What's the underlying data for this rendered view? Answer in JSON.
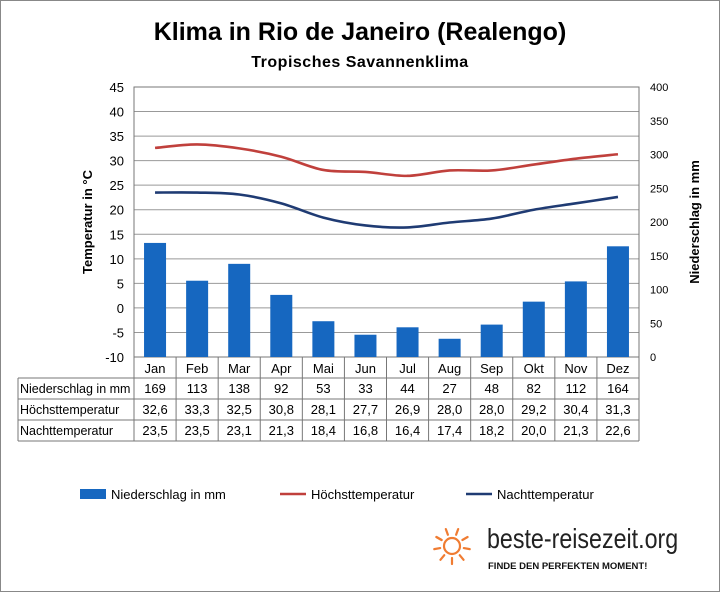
{
  "chart_data": {
    "type": "bar+line",
    "title": "Klima in Rio de Janeiro (Realengo)",
    "subtitle": "Tropisches  Savannenklima",
    "categories": [
      "Jan",
      "Feb",
      "Mar",
      "Apr",
      "Mai",
      "Jun",
      "Jul",
      "Aug",
      "Sep",
      "Okt",
      "Nov",
      "Dez"
    ],
    "ylabel_left": "Temperatur in °C",
    "ylabel_right": "Niederschlag in mm",
    "ylim_left": [
      -10,
      45
    ],
    "yticks_left": [
      -10,
      -5,
      0,
      5,
      10,
      15,
      20,
      25,
      30,
      35,
      40,
      45
    ],
    "ylim_right": [
      0,
      400
    ],
    "yticks_right": [
      0,
      50,
      100,
      150,
      200,
      250,
      300,
      350,
      400
    ],
    "grid": true,
    "legend_position": "bottom",
    "series": [
      {
        "name": "Niederschlag in mm",
        "type": "bar",
        "axis": "right",
        "color": "#1667c0",
        "values": [
          169,
          113,
          138,
          92,
          53,
          33,
          44,
          27,
          48,
          82,
          112,
          164
        ]
      },
      {
        "name": "Höchsttemperatur",
        "type": "line",
        "axis": "left",
        "color": "#c0403c",
        "values": [
          32.6,
          33.3,
          32.5,
          30.8,
          28.1,
          27.7,
          26.9,
          28.0,
          28.0,
          29.2,
          30.4,
          31.3
        ]
      },
      {
        "name": "Nachttemperatur",
        "type": "line",
        "axis": "left",
        "color": "#1f3b73",
        "values": [
          23.5,
          23.5,
          23.1,
          21.3,
          18.4,
          16.8,
          16.4,
          17.4,
          18.2,
          20.0,
          21.3,
          22.6
        ]
      }
    ],
    "table": {
      "row_labels": [
        "Niederschlag in mm",
        "Höchsttemperatur",
        "Nachttemperatur"
      ],
      "rows": [
        [
          "169",
          "113",
          "138",
          "92",
          "53",
          "33",
          "44",
          "27",
          "48",
          "82",
          "112",
          "164"
        ],
        [
          "32,6",
          "33,3",
          "32,5",
          "30,8",
          "28,1",
          "27,7",
          "26,9",
          "28,0",
          "28,0",
          "29,2",
          "30,4",
          "31,3"
        ],
        [
          "23,5",
          "23,5",
          "23,1",
          "21,3",
          "18,4",
          "16,8",
          "16,4",
          "17,4",
          "18,2",
          "20,0",
          "21,3",
          "22,6"
        ]
      ]
    }
  },
  "logo": {
    "name": "beste-reisezeit.org",
    "tagline": "FINDE DEN PERFEKTEN MOMENT!",
    "color": "#f07c32"
  }
}
